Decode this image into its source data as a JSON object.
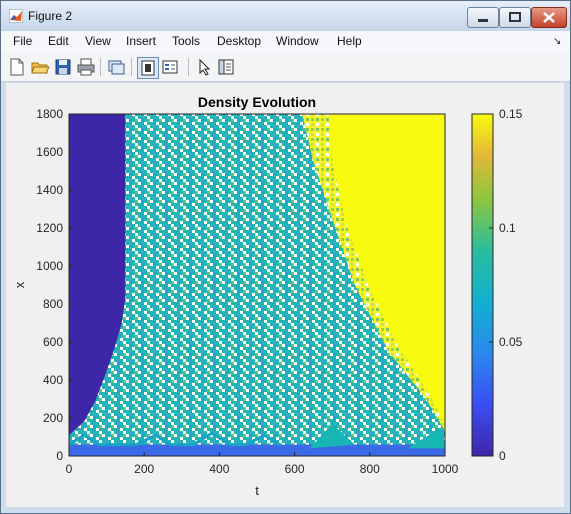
{
  "window": {
    "title": "Figure 2"
  },
  "menu": {
    "items": [
      "File",
      "Edit",
      "View",
      "Insert",
      "Tools",
      "Desktop",
      "Window",
      "Help"
    ]
  },
  "toolbar": {
    "icons": [
      "new-figure-icon",
      "open-file-icon",
      "save-icon",
      "print-icon",
      "link-plot-icon",
      "dock-figure-icon",
      "insert-legend-icon",
      "pointer-icon",
      "property-editor-icon"
    ]
  },
  "colors": {
    "min": "#3e26a8",
    "mid": "#17b5b3",
    "max": "#f9fb0e",
    "gap": "#ffffff"
  },
  "chart_data": {
    "type": "heatmap",
    "title": "Density Evolution",
    "xlabel": "t",
    "ylabel": "x",
    "xlim": [
      0,
      1000
    ],
    "ylim": [
      0,
      1800
    ],
    "xticks": [
      "0",
      "200",
      "400",
      "600",
      "800",
      "1000"
    ],
    "yticks": [
      "0",
      "200",
      "400",
      "600",
      "800",
      "1000",
      "1200",
      "1400",
      "1600",
      "1800"
    ],
    "colorbar": {
      "lim": [
        0,
        0.15
      ],
      "ticks": [
        "0",
        "0.05",
        "0.1",
        "0.15"
      ],
      "colormap": "parula"
    },
    "regions": [
      {
        "name": "left-low",
        "value": 0,
        "t_range": [
          0,
          150
        ],
        "x_range": [
          0,
          1800
        ]
      },
      {
        "name": "turbulent-front",
        "value": 0.075,
        "t_range": [
          150,
          1000
        ],
        "x_range": [
          0,
          1800
        ]
      },
      {
        "name": "right-high",
        "value": 0.15,
        "t_range": [
          690,
          1000
        ],
        "x_range": [
          130,
          1800
        ]
      }
    ]
  }
}
